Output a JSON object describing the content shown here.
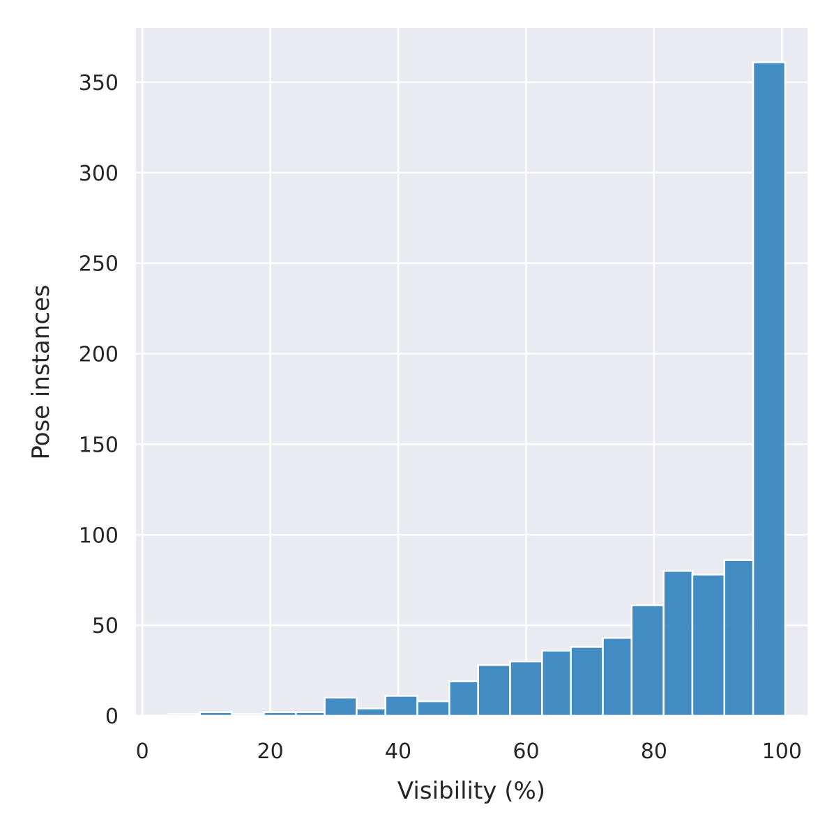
{
  "chart_data": {
    "type": "bar",
    "title": "",
    "xlabel": "Visibility (%)",
    "ylabel": "Pose instances",
    "xlim": [
      -1,
      104
    ],
    "ylim": [
      0,
      380
    ],
    "xticks": [
      0,
      20,
      40,
      60,
      80,
      100
    ],
    "yticks": [
      0,
      50,
      100,
      150,
      200,
      250,
      300,
      350
    ],
    "grid": true,
    "legend": "none",
    "colors": {
      "bar": "#3a87c0",
      "background": "#eaeaf2",
      "grid": "#ffffff"
    },
    "bins": [
      [
        4,
        9
      ],
      [
        9,
        14
      ],
      [
        14,
        19
      ],
      [
        19,
        24
      ],
      [
        24,
        28.5
      ],
      [
        28.5,
        33.5
      ],
      [
        33.5,
        38
      ],
      [
        38,
        43
      ],
      [
        43,
        48
      ],
      [
        48,
        52.5
      ],
      [
        52.5,
        57.5
      ],
      [
        57.5,
        62.5
      ],
      [
        62.5,
        67
      ],
      [
        67,
        72
      ],
      [
        72,
        76.5
      ],
      [
        76.5,
        81.5
      ],
      [
        81.5,
        86
      ],
      [
        86,
        91
      ],
      [
        91,
        95.5
      ],
      [
        95.5,
        100.5
      ]
    ],
    "values": [
      1,
      2,
      1,
      2,
      2,
      10,
      4,
      11,
      8,
      19,
      28,
      30,
      36,
      38,
      43,
      61,
      80,
      78,
      86,
      361
    ]
  }
}
